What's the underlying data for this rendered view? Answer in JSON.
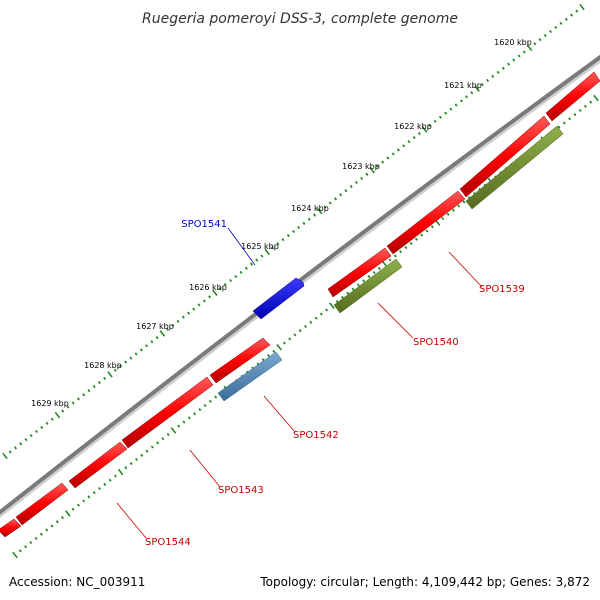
{
  "title": "Ruegeria pomeroyi DSS-3, complete genome",
  "ticks": [
    {
      "label": "1620 kbp"
    },
    {
      "label": "1621 kbp"
    },
    {
      "label": "1622 kbp"
    },
    {
      "label": "1623 kbp"
    },
    {
      "label": "1624 kbp"
    },
    {
      "label": "1625 kbp"
    },
    {
      "label": "1626 kbp"
    },
    {
      "label": "1627 kbp"
    },
    {
      "label": "1628 kbp"
    },
    {
      "label": "1629 kbp"
    }
  ],
  "gene_labels": [
    {
      "name": "SPO1541",
      "color": "#0000cc"
    },
    {
      "name": "SPO1539",
      "color": "#cc0000"
    },
    {
      "name": "SPO1540",
      "color": "#cc0000"
    },
    {
      "name": "SPO1542",
      "color": "#cc0000"
    },
    {
      "name": "SPO1543",
      "color": "#cc0000"
    },
    {
      "name": "SPO1544",
      "color": "#cc0000"
    }
  ],
  "colors": {
    "backbone": "#7a7a7a",
    "cds": "#ff0000",
    "cds_reverse_feature": "#0000ff",
    "feature_olive": "#6b8e23",
    "feature_steelblue": "#4682b4",
    "tick": "#228b22"
  },
  "footer": {
    "accession": "Accession: NC_003911",
    "info": "Topology: circular; Length: 4,109,442 bp; Genes: 3,872"
  }
}
